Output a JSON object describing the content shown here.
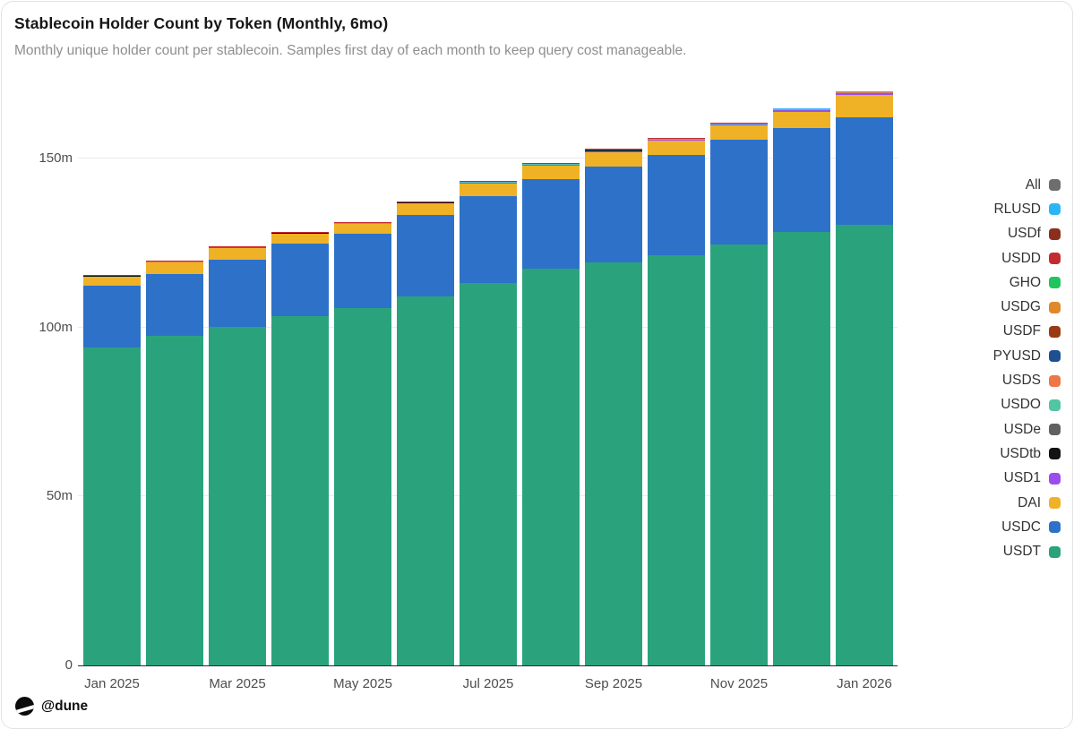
{
  "header": {
    "title": "Stablecoin Holder Count by Token (Monthly, 6mo)",
    "subtitle": "Monthly unique holder count per stablecoin. Samples first day of each month to keep query cost manageable."
  },
  "footer": {
    "handle": "@dune",
    "logo_icon": "dune-logo"
  },
  "chart_data": {
    "type": "bar",
    "stacked": true,
    "title": "Stablecoin Holder Count by Token (Monthly, 6mo)",
    "subtitle": "Monthly unique holder count per stablecoin. Samples first day of each month to keep query cost manageable.",
    "xlabel": "",
    "ylabel": "",
    "values_unit": "millions of unique holders",
    "ylim": [
      0,
      171
    ],
    "grid": "horizontal",
    "legend_position": "right",
    "x": [
      "Jan 2025",
      "Feb 2025",
      "Mar 2025",
      "Apr 2025",
      "May 2025",
      "Jun 2025",
      "Jul 2025",
      "Aug 2025",
      "Sep 2025",
      "Oct 2025",
      "Nov 2025",
      "Dec 2025",
      "Jan 2026"
    ],
    "x_tick_labels": [
      "Jan 2025",
      "Mar 2025",
      "May 2025",
      "Jul 2025",
      "Sep 2025",
      "Nov 2025",
      "Jan 2026"
    ],
    "y_ticks": [
      {
        "value": 0,
        "label": "0"
      },
      {
        "value": 50,
        "label": "50m"
      },
      {
        "value": 100,
        "label": "100m"
      },
      {
        "value": 150,
        "label": "150m"
      }
    ],
    "series": [
      {
        "name": "USDT",
        "color": "#2aa37d",
        "values": [
          94.1,
          97.5,
          100.2,
          103.4,
          105.7,
          109.2,
          113.2,
          117.4,
          119.3,
          121.4,
          124.6,
          128.3,
          130.4
        ]
      },
      {
        "name": "USDC",
        "color": "#2d72c8",
        "values": [
          18.3,
          18.3,
          19.9,
          21.5,
          22.0,
          24.1,
          25.7,
          26.5,
          28.3,
          29.7,
          31.0,
          30.7,
          31.8
        ]
      },
      {
        "name": "DAI",
        "color": "#efb226",
        "values": [
          2.65,
          3.4,
          3.4,
          2.9,
          2.9,
          3.4,
          3.7,
          4.0,
          4.2,
          4.2,
          4.2,
          4.8,
          6.6
        ]
      },
      {
        "name": "USD1",
        "color": "#9b4dee",
        "values": [
          0.25,
          0.25,
          0.25,
          0.25,
          0.25,
          0.3,
          0.4,
          0.4,
          0.5,
          0.4,
          0.4,
          0.5,
          0.5
        ]
      },
      {
        "name": "USDtb",
        "color": "#121212",
        "values": [
          0.08,
          0.08,
          0.08,
          0.08,
          0.08,
          0.1,
          0.1,
          0.12,
          0.15,
          0.12,
          0.15,
          0.2,
          0.2
        ]
      },
      {
        "name": "USDe",
        "color": "#616161",
        "values": [
          0.05,
          0.05,
          0.05,
          0.05,
          0.05,
          0.06,
          0.08,
          0.08,
          0.1,
          0.08,
          0.08,
          0.1,
          0.1
        ]
      },
      {
        "name": "USDO",
        "color": "#52c5a3",
        "values": [
          0.03,
          0.03,
          0.03,
          0.03,
          0.03,
          0.04,
          0.04,
          0.04,
          0.05,
          0.04,
          0.04,
          0.05,
          0.05
        ]
      },
      {
        "name": "USDS",
        "color": "#ed7747",
        "values": [
          0.04,
          0.04,
          0.04,
          0.04,
          0.04,
          0.05,
          0.06,
          0.06,
          0.08,
          0.06,
          0.06,
          0.08,
          0.08
        ]
      },
      {
        "name": "PYUSD",
        "color": "#1d4f91",
        "values": [
          0.05,
          0.05,
          0.05,
          0.05,
          0.05,
          0.06,
          0.08,
          0.08,
          0.1,
          0.08,
          0.08,
          0.1,
          0.1
        ]
      },
      {
        "name": "USDF",
        "color": "#9a3a12",
        "values": [
          0.01,
          0.01,
          0.01,
          0.01,
          0.01,
          0.01,
          0.01,
          0.01,
          0.01,
          0.01,
          0.01,
          0.01,
          0.01
        ]
      },
      {
        "name": "USDG",
        "color": "#e0882c",
        "values": [
          0.02,
          0.02,
          0.02,
          0.02,
          0.02,
          0.02,
          0.02,
          0.02,
          0.02,
          0.02,
          0.02,
          0.02,
          0.02
        ]
      },
      {
        "name": "GHO",
        "color": "#21c45d",
        "values": [
          0.01,
          0.01,
          0.01,
          0.01,
          0.01,
          0.01,
          0.01,
          0.01,
          0.01,
          0.01,
          0.01,
          0.01,
          0.01
        ]
      },
      {
        "name": "USDD",
        "color": "#c42b30",
        "values": [
          0.03,
          0.03,
          0.03,
          0.03,
          0.03,
          0.03,
          0.03,
          0.03,
          0.03,
          0.03,
          0.03,
          0.03,
          0.03
        ]
      },
      {
        "name": "USDf",
        "color": "#8a2f1e",
        "values": [
          0.01,
          0.01,
          0.01,
          0.01,
          0.01,
          0.01,
          0.01,
          0.01,
          0.01,
          0.01,
          0.01,
          0.01,
          0.01
        ]
      },
      {
        "name": "RLUSD",
        "color": "#29b6f6",
        "values": [
          0.01,
          0.01,
          0.01,
          0.01,
          0.01,
          0.02,
          0.02,
          0.02,
          0.02,
          0.02,
          0.02,
          0.03,
          0.03
        ]
      }
    ],
    "legend": [
      {
        "label": "All",
        "color": "#6e6e6e"
      },
      {
        "label": "RLUSD",
        "color": "#29b6f6"
      },
      {
        "label": "USDf",
        "color": "#8a2f1e"
      },
      {
        "label": "USDD",
        "color": "#c42b30"
      },
      {
        "label": "GHO",
        "color": "#21c45d"
      },
      {
        "label": "USDG",
        "color": "#e0882c"
      },
      {
        "label": "USDF",
        "color": "#9a3a12"
      },
      {
        "label": "PYUSD",
        "color": "#1d4f91"
      },
      {
        "label": "USDS",
        "color": "#ed7747"
      },
      {
        "label": "USDO",
        "color": "#52c5a3"
      },
      {
        "label": "USDe",
        "color": "#616161"
      },
      {
        "label": "USDtb",
        "color": "#121212"
      },
      {
        "label": "USD1",
        "color": "#9b4dee"
      },
      {
        "label": "DAI",
        "color": "#efb226"
      },
      {
        "label": "USDC",
        "color": "#2d72c8"
      },
      {
        "label": "USDT",
        "color": "#2aa37d"
      }
    ]
  }
}
